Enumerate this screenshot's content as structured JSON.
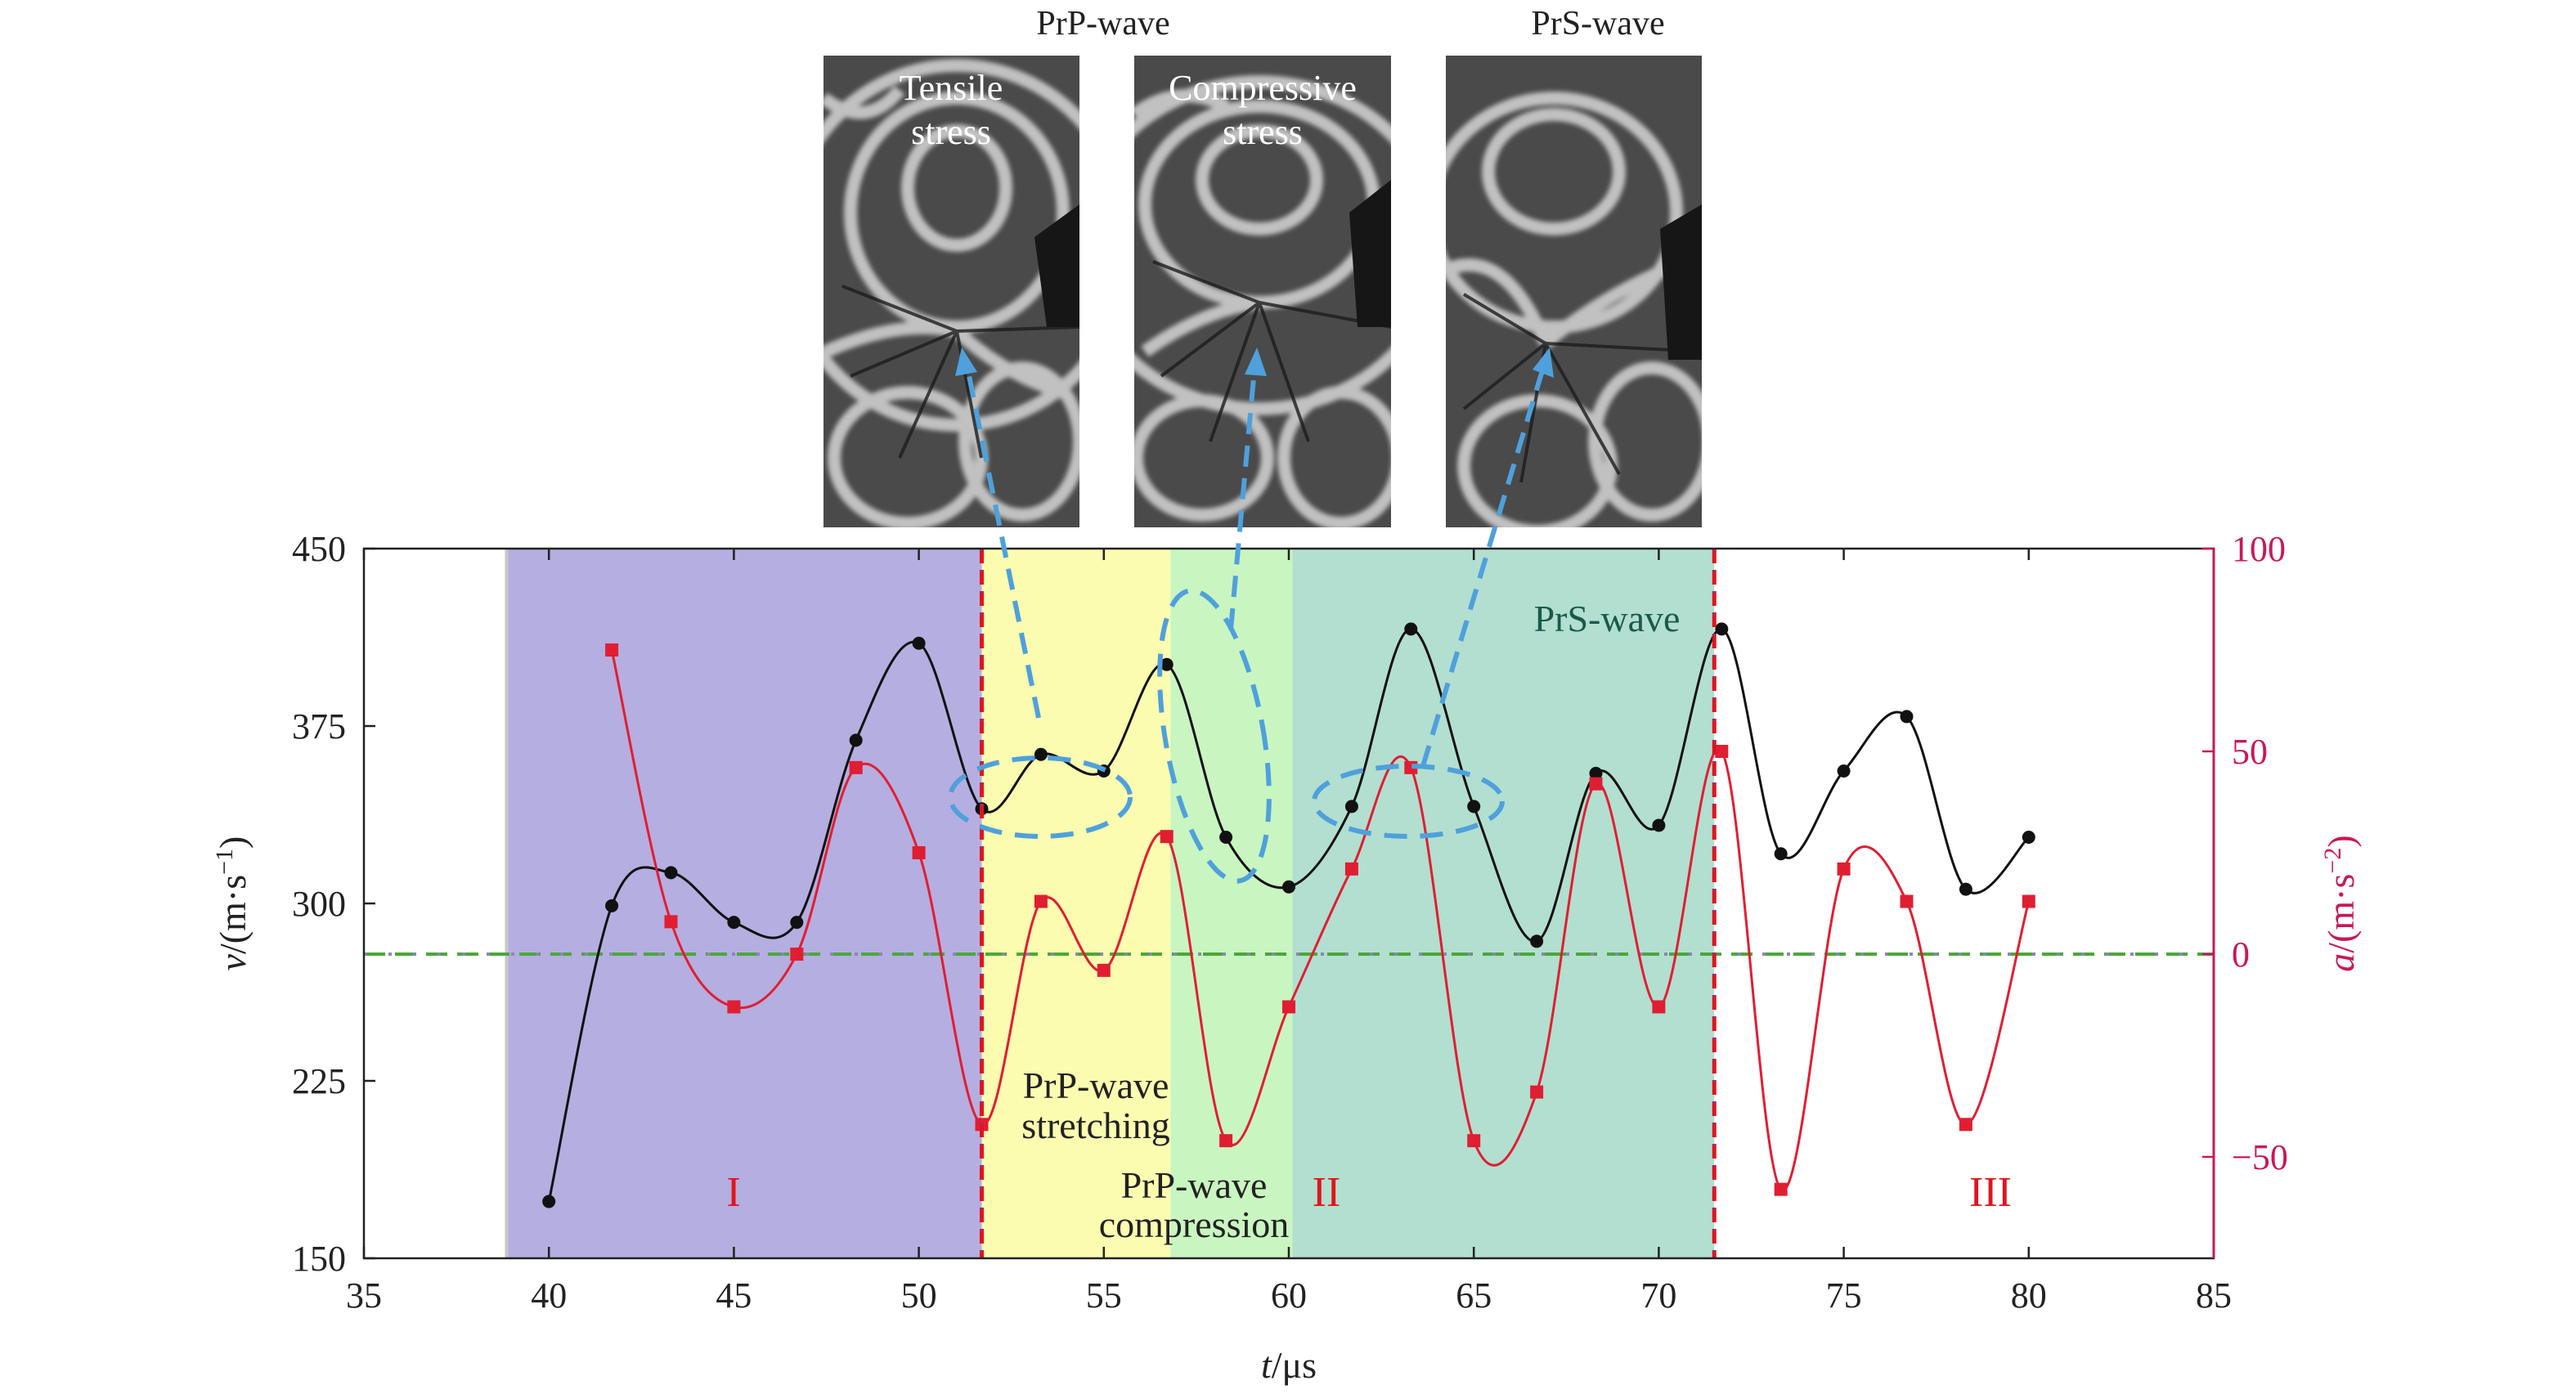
{
  "insets": {
    "title_left": "PrP-wave",
    "title_right": "PrS-wave",
    "tensile_l1": "Tensile",
    "tensile_l2": "stress",
    "compressive_l1": "Compressive",
    "compressive_l2": "stress"
  },
  "chart_data": {
    "type": "line",
    "xlabel_var": "t",
    "xlabel_unit": "/μs",
    "ylabel_left_var": "v",
    "ylabel_left_unit": "/(m·s",
    "ylabel_left_sup": "−1",
    "ylabel_left_close": ")",
    "ylabel_right_var": "a",
    "ylabel_right_unit": "/(m·s",
    "ylabel_right_sup": "−2",
    "ylabel_right_close": ")",
    "xlim": [
      35,
      85
    ],
    "ylim_left": [
      150,
      450
    ],
    "ylim_right": [
      -75,
      100
    ],
    "x_ticks": [
      35,
      40,
      45,
      50,
      55,
      60,
      65,
      70,
      75,
      80,
      85
    ],
    "y_left_ticks": [
      150,
      225,
      300,
      375,
      450
    ],
    "y_right_ticks": [
      -50,
      0,
      50,
      100
    ],
    "y_right_tick_labels": [
      "−50",
      "0",
      "50",
      "100"
    ],
    "regions": [
      {
        "from": 38.9,
        "to": 51.7,
        "color": "#b5aee0"
      },
      {
        "from": 51.7,
        "to": 56.8,
        "color": "#fbfcb0"
      },
      {
        "from": 56.8,
        "to": 60.1,
        "color": "#c9f5c0"
      },
      {
        "from": 60.1,
        "to": 71.5,
        "color": "#b2dfd0"
      }
    ],
    "vlines": [
      51.7,
      71.5
    ],
    "zero_line_right": 0,
    "series": [
      {
        "axis": "left",
        "color": "#111111",
        "x": [
          40,
          41.7,
          43.3,
          45,
          46.7,
          48.3,
          50,
          51.7,
          53.3,
          55,
          56.7,
          58.3,
          60,
          61.7,
          63.3,
          65,
          66.7,
          68.3,
          70,
          71.7,
          73.3,
          75,
          76.7,
          78.3,
          80
        ],
        "y": [
          174,
          299,
          313,
          292,
          292,
          369,
          410,
          340,
          363,
          356,
          401,
          328,
          307,
          341,
          416,
          341,
          284,
          355,
          333,
          416,
          321,
          356,
          379,
          306,
          328
        ]
      },
      {
        "axis": "right",
        "color": "#e01e32",
        "x": [
          41.7,
          43.3,
          45,
          46.7,
          48.3,
          50,
          51.7,
          53.3,
          55,
          56.7,
          58.3,
          60,
          61.7,
          63.3,
          65,
          66.7,
          68.3,
          70,
          71.7,
          73.3,
          75,
          76.7,
          78.3,
          80
        ],
        "y": [
          75,
          8,
          -13,
          0,
          46,
          25,
          -42,
          13,
          -4,
          29,
          -46,
          -13,
          21,
          46,
          -46,
          -34,
          42,
          -13,
          50,
          -58,
          21,
          13,
          -42,
          13
        ]
      }
    ],
    "annotations": {
      "region_1": "I",
      "region_2": "II",
      "region_3": "III",
      "prs_wave": "PrS-wave",
      "stretching_l1": "PrP-wave",
      "stretching_l2": "stretching",
      "compression_l1": "PrP-wave",
      "compression_l2": "compression"
    },
    "colors": {
      "left_axis": "#111111",
      "right_axis": "#c8185a",
      "callout": "#4fa0dc",
      "vline": "#e0141e",
      "zero_line": "#4aa838"
    }
  }
}
